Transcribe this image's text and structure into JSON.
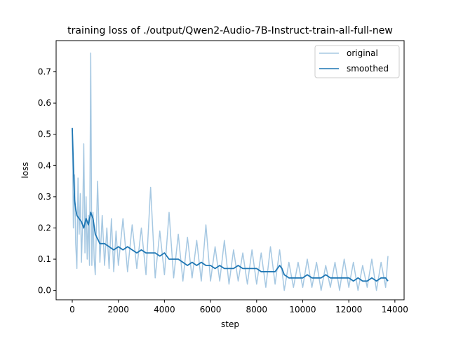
{
  "chart_data": {
    "type": "line",
    "title": "training loss of ./output/Qwen2-Audio-7B-Instruct-train-all-full-new",
    "xlabel": "step",
    "ylabel": "loss",
    "xlim": [
      -700,
      14400
    ],
    "ylim": [
      -0.03,
      0.8
    ],
    "xticks": [
      0,
      2000,
      4000,
      6000,
      8000,
      10000,
      12000,
      14000
    ],
    "xtick_labels": [
      "0",
      "2000",
      "4000",
      "6000",
      "8000",
      "10000",
      "12000",
      "14000"
    ],
    "yticks": [
      0.0,
      0.1,
      0.2,
      0.3,
      0.4,
      0.5,
      0.6,
      0.7
    ],
    "ytick_labels": [
      "0.0",
      "0.1",
      "0.2",
      "0.3",
      "0.4",
      "0.5",
      "0.6",
      "0.7"
    ],
    "grid": false,
    "legend_position": "top-right",
    "series": [
      {
        "name": "original",
        "color": "#a6c8e2",
        "x": [
          0,
          50,
          100,
          150,
          200,
          250,
          300,
          350,
          400,
          450,
          500,
          550,
          600,
          650,
          700,
          750,
          800,
          850,
          900,
          950,
          1000,
          1100,
          1200,
          1300,
          1400,
          1500,
          1600,
          1700,
          1800,
          1900,
          2000,
          2200,
          2400,
          2600,
          2800,
          3000,
          3200,
          3400,
          3600,
          3800,
          4000,
          4200,
          4400,
          4600,
          4800,
          5000,
          5200,
          5400,
          5600,
          5800,
          6000,
          6200,
          6400,
          6600,
          6800,
          7000,
          7200,
          7400,
          7600,
          7800,
          8000,
          8200,
          8400,
          8600,
          8800,
          9000,
          9200,
          9400,
          9600,
          9800,
          10000,
          10200,
          10400,
          10600,
          10800,
          11000,
          11200,
          11400,
          11600,
          11800,
          12000,
          12200,
          12400,
          12600,
          12800,
          13000,
          13200,
          13400,
          13600,
          13700
        ],
        "y": [
          0.52,
          0.2,
          0.37,
          0.15,
          0.07,
          0.36,
          0.18,
          0.31,
          0.09,
          0.22,
          0.47,
          0.12,
          0.3,
          0.1,
          0.24,
          0.08,
          0.76,
          0.08,
          0.25,
          0.1,
          0.05,
          0.35,
          0.09,
          0.24,
          0.08,
          0.2,
          0.07,
          0.23,
          0.06,
          0.19,
          0.08,
          0.23,
          0.06,
          0.21,
          0.07,
          0.2,
          0.05,
          0.33,
          0.04,
          0.19,
          0.05,
          0.25,
          0.04,
          0.18,
          0.03,
          0.17,
          0.04,
          0.16,
          0.03,
          0.21,
          0.03,
          0.14,
          0.03,
          0.16,
          0.02,
          0.13,
          0.03,
          0.12,
          0.02,
          0.13,
          0.02,
          0.12,
          0.01,
          0.14,
          0.02,
          0.13,
          0.0,
          0.09,
          0.01,
          0.09,
          0.01,
          0.1,
          0.01,
          0.09,
          0.0,
          0.08,
          0.01,
          0.09,
          0.0,
          0.1,
          0.01,
          0.09,
          0.0,
          0.08,
          0.01,
          0.1,
          0.0,
          0.09,
          0.01,
          0.11
        ]
      },
      {
        "name": "smoothed",
        "color": "#1f77b4",
        "x": [
          0,
          50,
          100,
          150,
          200,
          300,
          400,
          500,
          600,
          700,
          800,
          900,
          1000,
          1200,
          1400,
          1600,
          1800,
          2000,
          2200,
          2400,
          2600,
          2800,
          3000,
          3200,
          3400,
          3600,
          3800,
          4000,
          4200,
          4400,
          4600,
          4800,
          5000,
          5200,
          5400,
          5600,
          5800,
          6000,
          6200,
          6400,
          6600,
          6800,
          7000,
          7200,
          7400,
          7600,
          7800,
          8000,
          8200,
          8400,
          8600,
          8800,
          9000,
          9100,
          9200,
          9400,
          9600,
          9800,
          10000,
          10200,
          10400,
          10600,
          10800,
          11000,
          11200,
          11400,
          11600,
          11800,
          12000,
          12200,
          12400,
          12600,
          12800,
          13000,
          13200,
          13400,
          13600,
          13700
        ],
        "y": [
          0.52,
          0.4,
          0.29,
          0.26,
          0.24,
          0.23,
          0.22,
          0.2,
          0.23,
          0.21,
          0.25,
          0.23,
          0.18,
          0.15,
          0.15,
          0.14,
          0.13,
          0.14,
          0.13,
          0.14,
          0.13,
          0.12,
          0.13,
          0.12,
          0.12,
          0.12,
          0.11,
          0.12,
          0.1,
          0.1,
          0.1,
          0.09,
          0.08,
          0.09,
          0.08,
          0.09,
          0.08,
          0.08,
          0.07,
          0.08,
          0.07,
          0.07,
          0.07,
          0.08,
          0.07,
          0.07,
          0.07,
          0.07,
          0.06,
          0.06,
          0.06,
          0.06,
          0.08,
          0.07,
          0.05,
          0.04,
          0.04,
          0.04,
          0.04,
          0.05,
          0.04,
          0.04,
          0.04,
          0.05,
          0.04,
          0.04,
          0.04,
          0.04,
          0.04,
          0.03,
          0.04,
          0.03,
          0.03,
          0.04,
          0.03,
          0.04,
          0.04,
          0.03
        ]
      }
    ]
  }
}
